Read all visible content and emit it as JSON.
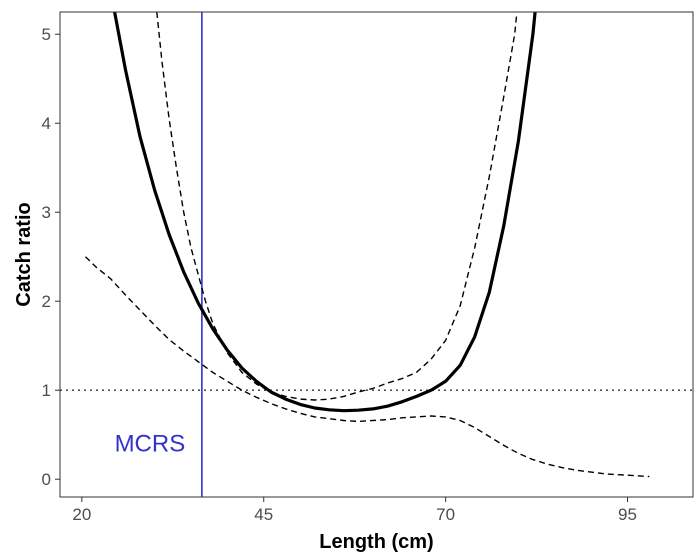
{
  "chart_data": {
    "type": "line",
    "xlabel": "Length (cm)",
    "ylabel": "Catch ratio",
    "xlim": [
      17,
      104
    ],
    "ylim": [
      -0.2,
      5.25
    ],
    "x_ticks": [
      20,
      45,
      70,
      95
    ],
    "y_ticks": [
      0,
      1,
      2,
      3,
      4,
      5
    ],
    "grid": false,
    "series": [
      {
        "style": "solid-thick",
        "color": "#000000",
        "points": [
          [
            24.5,
            5.25
          ],
          [
            26,
            4.6
          ],
          [
            28,
            3.85
          ],
          [
            30,
            3.25
          ],
          [
            32,
            2.75
          ],
          [
            34,
            2.33
          ],
          [
            36,
            1.98
          ],
          [
            38,
            1.69
          ],
          [
            40,
            1.45
          ],
          [
            42,
            1.25
          ],
          [
            44,
            1.1
          ],
          [
            46,
            0.98
          ],
          [
            48,
            0.9
          ],
          [
            50,
            0.84
          ],
          [
            52,
            0.8
          ],
          [
            54,
            0.78
          ],
          [
            56,
            0.77
          ],
          [
            58,
            0.775
          ],
          [
            60,
            0.79
          ],
          [
            62,
            0.82
          ],
          [
            64,
            0.87
          ],
          [
            66,
            0.93
          ],
          [
            68,
            1.0
          ],
          [
            70,
            1.1
          ],
          [
            72,
            1.28
          ],
          [
            74,
            1.6
          ],
          [
            76,
            2.1
          ],
          [
            78,
            2.85
          ],
          [
            80,
            3.8
          ],
          [
            82,
            5.0
          ],
          [
            82.3,
            5.25
          ]
        ]
      },
      {
        "style": "dashed",
        "color": "#000000",
        "points": [
          [
            30.3,
            5.25
          ],
          [
            31,
            4.7
          ],
          [
            32,
            4.05
          ],
          [
            33,
            3.5
          ],
          [
            34,
            3.0
          ],
          [
            35,
            2.6
          ],
          [
            36,
            2.3
          ],
          [
            37,
            2.0
          ],
          [
            38,
            1.75
          ],
          [
            40,
            1.42
          ],
          [
            42,
            1.2
          ],
          [
            44,
            1.07
          ],
          [
            46,
            0.98
          ],
          [
            48,
            0.93
          ],
          [
            50,
            0.9
          ],
          [
            52,
            0.89
          ],
          [
            54,
            0.9
          ],
          [
            56,
            0.93
          ],
          [
            58,
            0.98
          ],
          [
            60,
            1.02
          ],
          [
            62,
            1.08
          ],
          [
            64,
            1.13
          ],
          [
            66,
            1.2
          ],
          [
            68,
            1.35
          ],
          [
            70,
            1.56
          ],
          [
            72,
            1.95
          ],
          [
            74,
            2.6
          ],
          [
            76,
            3.4
          ],
          [
            78,
            4.3
          ],
          [
            79.5,
            5.0
          ],
          [
            79.8,
            5.25
          ]
        ]
      },
      {
        "style": "dashed",
        "color": "#000000",
        "points": [
          [
            20.5,
            2.5
          ],
          [
            22,
            2.38
          ],
          [
            24,
            2.25
          ],
          [
            26,
            2.07
          ],
          [
            28,
            1.9
          ],
          [
            30,
            1.73
          ],
          [
            32,
            1.57
          ],
          [
            34,
            1.44
          ],
          [
            36,
            1.32
          ],
          [
            38,
            1.2
          ],
          [
            40,
            1.1
          ],
          [
            42,
            1.0
          ],
          [
            44,
            0.92
          ],
          [
            46,
            0.85
          ],
          [
            48,
            0.79
          ],
          [
            50,
            0.74
          ],
          [
            52,
            0.7
          ],
          [
            54,
            0.68
          ],
          [
            56,
            0.66
          ],
          [
            58,
            0.65
          ],
          [
            60,
            0.66
          ],
          [
            62,
            0.67
          ],
          [
            64,
            0.69
          ],
          [
            66,
            0.7
          ],
          [
            68,
            0.71
          ],
          [
            70,
            0.7
          ],
          [
            72,
            0.66
          ],
          [
            74,
            0.58
          ],
          [
            76,
            0.48
          ],
          [
            78,
            0.38
          ],
          [
            80,
            0.29
          ],
          [
            82,
            0.22
          ],
          [
            84,
            0.17
          ],
          [
            86,
            0.13
          ],
          [
            88,
            0.1
          ],
          [
            90,
            0.08
          ],
          [
            92,
            0.06
          ],
          [
            94,
            0.05
          ],
          [
            96,
            0.04
          ],
          [
            98,
            0.03
          ]
        ]
      }
    ],
    "reference_lines": [
      {
        "orientation": "horizontal",
        "value": 1,
        "style": "dotted",
        "color": "#333333"
      },
      {
        "orientation": "vertical",
        "value": 36.5,
        "style": "solid",
        "color": "#3333cc"
      }
    ],
    "annotations": [
      {
        "text": "MCRS",
        "x": 24.5,
        "y": 0.4,
        "color": "#3333cc"
      }
    ]
  }
}
